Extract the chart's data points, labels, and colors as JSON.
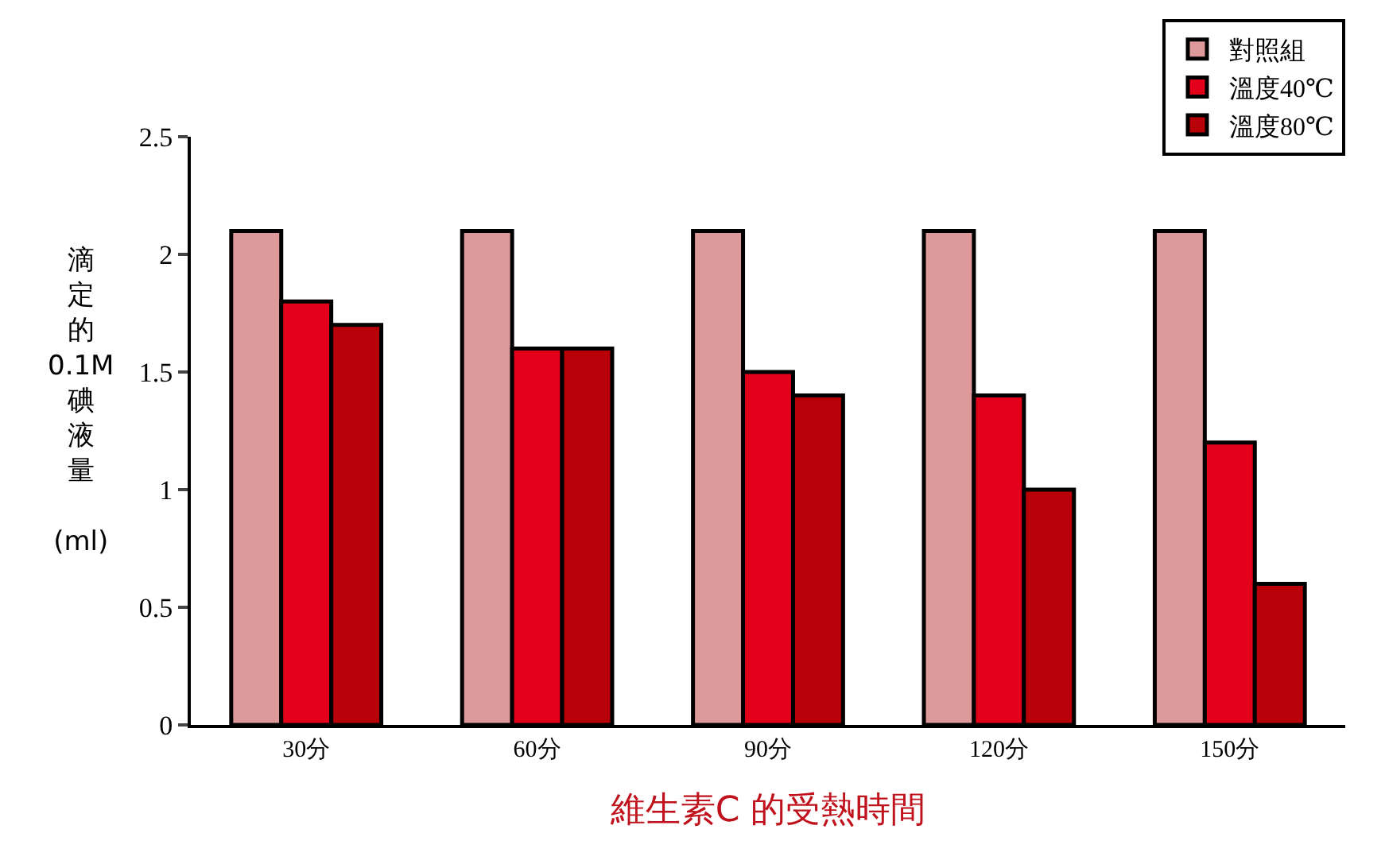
{
  "chart_data": {
    "type": "bar",
    "xlabel": "維生素C 的受熱時間",
    "ylabel": "滴定的0.1M碘液量 (ml)",
    "categories": [
      "30分",
      "60分",
      "90分",
      "120分",
      "150分"
    ],
    "series": [
      {
        "name": "對照組",
        "color": "#de9a9a",
        "values": [
          2.1,
          2.1,
          2.1,
          2.1,
          2.1
        ]
      },
      {
        "name": "溫度40℃",
        "color": "#e2001a",
        "values": [
          1.8,
          1.6,
          1.5,
          1.4,
          1.2
        ]
      },
      {
        "name": "溫度80℃",
        "color": "#b80008",
        "values": [
          1.7,
          1.6,
          1.4,
          1.0,
          0.6
        ]
      }
    ],
    "ylim": [
      0,
      2.5
    ],
    "yticks": [
      0,
      0.5,
      1,
      1.5,
      2,
      2.5
    ],
    "grid": false,
    "legend": "top right"
  }
}
